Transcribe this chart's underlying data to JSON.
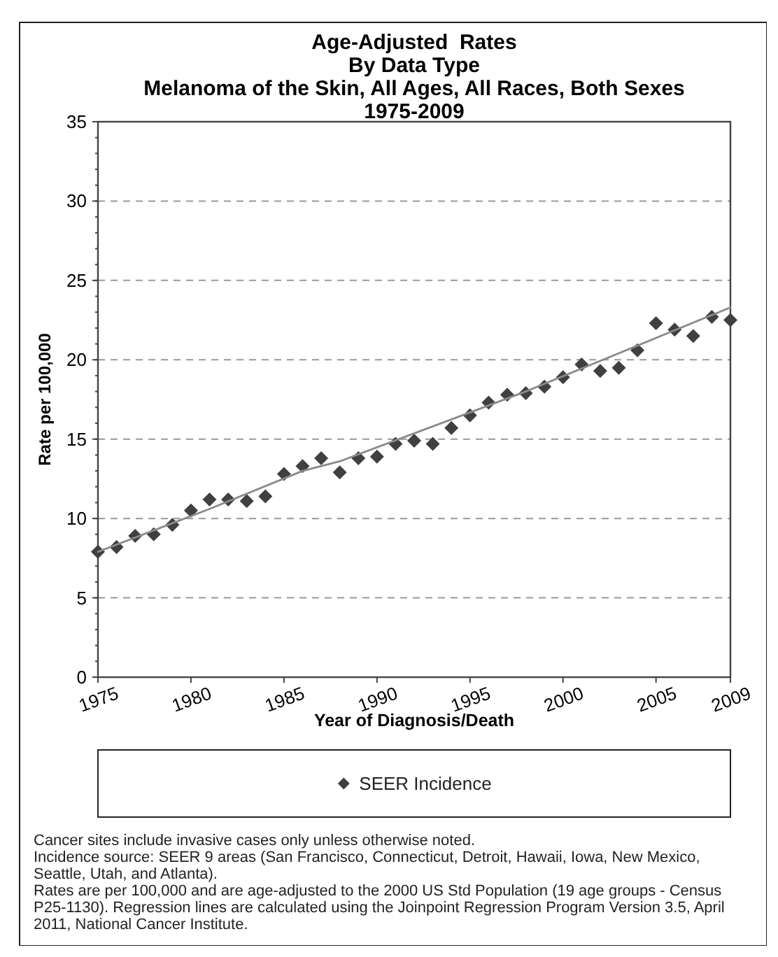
{
  "chart_data": {
    "type": "scatter",
    "title": "Age-Adjusted  Rates\nBy Data Type",
    "subtitle": "Melanoma of the Skin, All Ages, All Races, Both Sexes\n1975-2009",
    "xlabel": "Year of Diagnosis/Death",
    "ylabel": "Rate per 100,000",
    "x": [
      1975,
      1976,
      1977,
      1978,
      1979,
      1980,
      1981,
      1982,
      1983,
      1984,
      1985,
      1986,
      1987,
      1988,
      1989,
      1990,
      1991,
      1992,
      1993,
      1994,
      1995,
      1996,
      1997,
      1998,
      1999,
      2000,
      2001,
      2002,
      2003,
      2004,
      2005,
      2006,
      2007,
      2008,
      2009
    ],
    "series": [
      {
        "name": "SEER Incidence",
        "color": "#404040",
        "marker": "diamond",
        "values": [
          7.9,
          8.2,
          8.9,
          9.0,
          9.6,
          10.5,
          11.2,
          11.2,
          11.1,
          11.4,
          12.8,
          13.3,
          13.8,
          12.9,
          13.8,
          13.9,
          14.7,
          14.9,
          14.7,
          15.7,
          16.5,
          17.3,
          17.8,
          17.9,
          18.3,
          18.9,
          19.7,
          19.3,
          19.5,
          20.6,
          22.3,
          21.9,
          21.5,
          22.7,
          22.5
        ]
      },
      {
        "type": "line",
        "color": "#8a8a8a",
        "marker": "none",
        "line_style": "solid",
        "x": [
          1975,
          1981,
          1986,
          1988,
          1998,
          2009
        ],
        "values": [
          7.9,
          10.6,
          13.0,
          13.6,
          18.0,
          23.3
        ]
      }
    ],
    "xlim": [
      1975,
      2009
    ],
    "xticks": [
      1975,
      1980,
      1985,
      1990,
      1995,
      2000,
      2005,
      2009
    ],
    "ylim": [
      0,
      35
    ],
    "yticks": [
      0,
      5,
      10,
      15,
      20,
      25,
      30,
      35
    ],
    "grid": "y",
    "legend": "bottom",
    "annotations": [
      "Cancer sites include invasive cases only unless otherwise noted.",
      "Incidence source: SEER 9 areas (San Francisco, Connecticut, Detroit, Hawaii, Iowa, New Mexico, Seattle, Utah, and Atlanta).",
      "Rates are per 100,000 and are age-adjusted to the 2000 US Std Population (19 age groups - Census P25-1130). Regression lines are calculated using the Joinpoint Regression Program Version 3.5, April 2011, National Cancer Institute."
    ]
  }
}
